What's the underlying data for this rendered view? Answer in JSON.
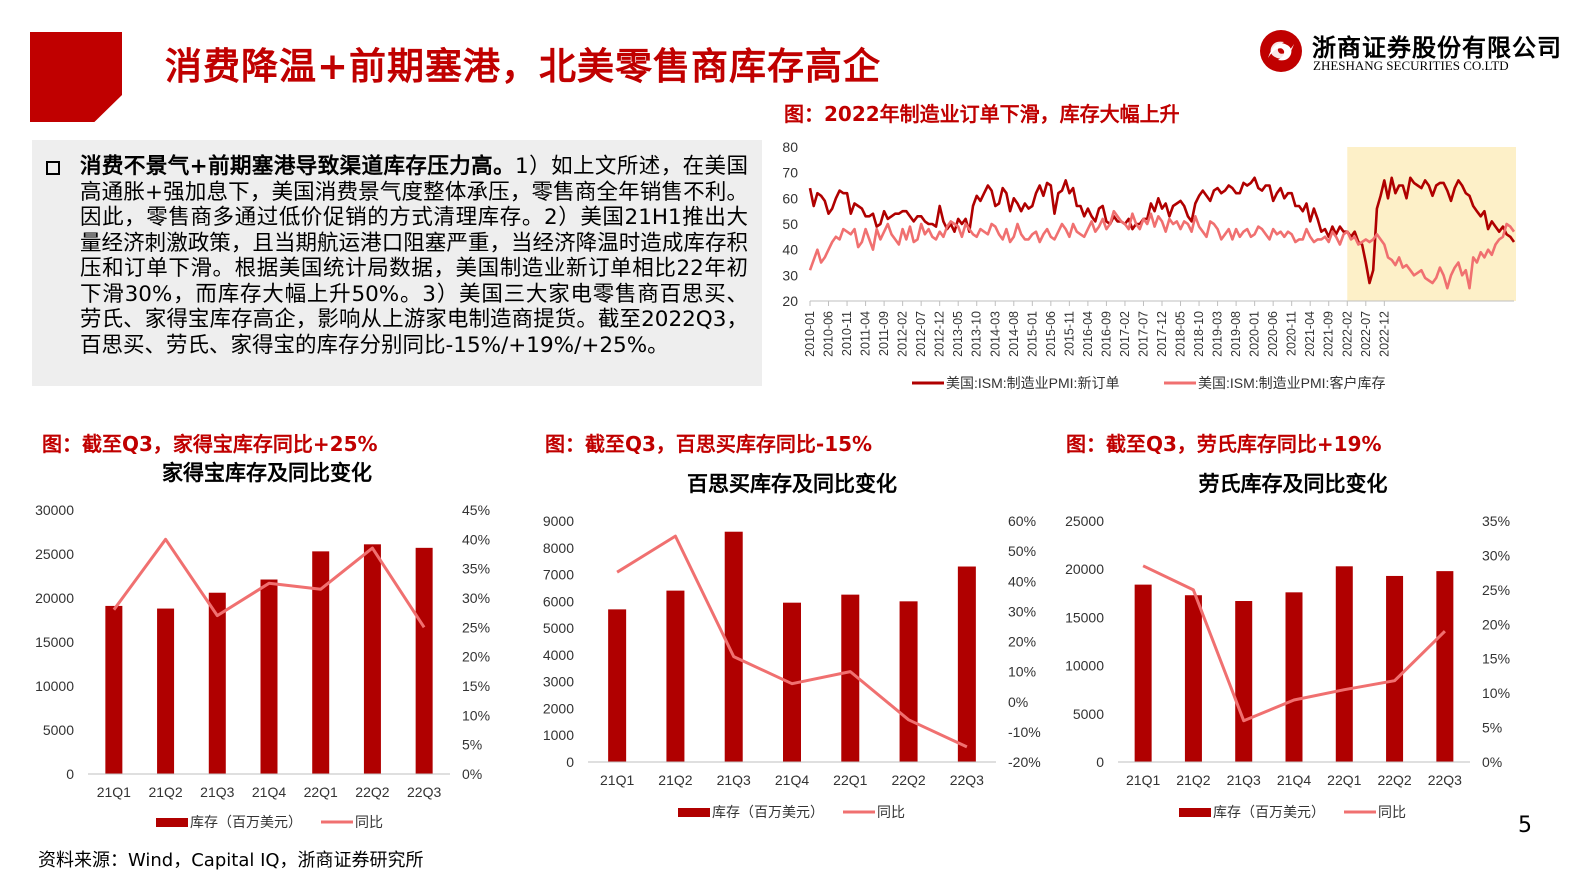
{
  "header": {
    "title": "消费降温+前期塞港，北美零售商库存高企",
    "logo_cn": "浙商证券股份有限公司",
    "logo_en": "ZHESHANG SECURITIES CO.LTD"
  },
  "body": {
    "lead": "消费不景气+前期塞港导致渠道库存压力高。",
    "text": "1）如上文所述，在美国高通胀+强加息下，美国消费景气度整体承压，零售商全年销售不利。因此，零售商多通过低价促销的方式清理库存。2）美国21H1推出大量经济刺激政策，且当期航运港口阻塞严重，当经济降温时造成库存积压和订单下滑。根据美国统计局数据，美国制造业新订单相比22年初下滑30%，而库存大幅上升50%。3）美国三大家电零售商百思买、劳氏、家得宝库存高企，影响从上游家电制造商提货。截至2022Q3，百思买、劳氏、家得宝的库存分别同比-15%/+19%/+25%。"
  },
  "figures": {
    "pmi_title": "图：2022年制造业订单下滑，库存大幅上升",
    "hd_title": "图：截至Q3，家得宝库存同比+25%",
    "bby_title": "图：截至Q3，百思买库存同比-15%",
    "low_title": "图：截至Q3，劳氏库存同比+19%"
  },
  "footer": {
    "source": "资料来源：Wind，Capital IQ，浙商证券研究所",
    "page": "5"
  },
  "colors": {
    "brand_red": "#c00000",
    "bar_red": "#b00000",
    "line_pink": "#f07070",
    "pmi_dark": "#b00000",
    "highlight": "#fdf0c8"
  },
  "chart_data": [
    {
      "type": "line",
      "x_ticks": [
        "2010-01",
        "2010-06",
        "2010-11",
        "2011-04",
        "2011-09",
        "2012-02",
        "2012-07",
        "2012-12",
        "2013-05",
        "2013-10",
        "2014-03",
        "2014-08",
        "2015-01",
        "2015-06",
        "2015-11",
        "2016-04",
        "2016-09",
        "2017-02",
        "2017-07",
        "2017-12",
        "2018-05",
        "2018-10",
        "2019-03",
        "2019-08",
        "2020-01",
        "2020-06",
        "2020-11",
        "2021-04",
        "2021-09",
        "2022-02",
        "2022-07",
        "2022-12"
      ],
      "ylim": [
        20,
        80
      ],
      "y_ticks": [
        20,
        30,
        40,
        50,
        60,
        70,
        80
      ],
      "highlight_from": "2022-02",
      "legend_placement": "bottom",
      "series": [
        {
          "name": "美国:ISM:制造业PMI:新订单",
          "values": [
            64,
            57,
            62,
            61,
            59,
            54,
            56,
            60,
            63,
            62,
            62,
            54,
            58,
            57,
            56,
            53,
            53,
            54,
            49,
            50,
            55,
            52,
            53,
            54,
            54,
            55,
            55,
            53,
            51,
            53,
            53,
            51,
            50,
            50,
            49,
            57,
            51,
            48,
            50,
            47,
            52,
            50,
            52,
            47,
            57,
            61,
            59,
            62,
            65,
            63,
            57,
            58,
            64,
            62,
            55,
            60,
            58,
            55,
            58,
            56,
            57,
            62,
            65,
            61,
            66,
            65,
            54,
            62,
            63,
            67,
            62,
            64,
            57,
            57,
            53,
            56,
            53,
            51,
            56,
            57,
            51,
            50,
            53,
            51,
            51,
            50,
            52,
            48,
            50,
            50,
            52,
            52,
            58,
            55,
            60,
            56,
            58,
            53,
            57,
            58,
            59,
            57,
            53,
            51,
            58,
            61,
            63,
            61,
            59,
            63,
            64,
            62,
            63,
            65,
            64,
            62,
            62,
            66,
            65,
            66,
            68,
            64,
            63,
            65,
            65,
            59,
            62,
            64,
            60,
            62,
            62,
            57,
            57,
            55,
            58,
            51,
            56,
            52,
            47,
            48,
            45,
            49,
            46,
            49,
            47,
            47,
            45,
            47,
            43,
            42,
            35,
            27,
            32,
            56,
            61,
            67,
            60,
            68,
            62,
            65,
            65,
            60,
            68,
            66,
            65,
            64,
            67,
            65,
            61,
            65,
            66,
            66,
            63,
            59,
            64,
            67,
            65,
            62,
            61,
            57,
            55,
            53,
            55,
            48,
            51,
            49,
            47,
            49,
            46,
            45,
            43
          ]
        },
        {
          "name": "美国:ISM:制造业PMI:客户库存",
          "values": [
            32,
            36,
            40,
            35,
            37,
            40,
            43,
            45,
            44,
            48,
            47,
            46,
            48,
            41,
            43,
            48,
            44,
            40,
            48,
            44,
            47,
            50,
            46,
            44,
            42,
            48,
            44,
            49,
            43,
            44,
            50,
            46,
            48,
            45,
            44,
            47,
            45,
            49,
            51,
            50,
            49,
            45,
            50,
            48,
            46,
            45,
            48,
            47,
            46,
            50,
            49,
            46,
            44,
            48,
            43,
            45,
            50,
            46,
            44,
            44,
            46,
            47,
            43,
            46,
            48,
            45,
            44,
            47,
            50,
            48,
            45,
            50,
            47,
            46,
            45,
            48,
            51,
            47,
            49,
            52,
            48,
            50,
            55,
            53,
            51,
            50,
            48,
            54,
            50,
            48,
            52,
            50,
            54,
            49,
            53,
            51,
            47,
            52,
            50,
            51,
            48,
            51,
            50,
            47,
            53,
            49,
            47,
            45,
            51,
            50,
            48,
            44,
            46,
            48,
            44,
            48,
            45,
            47,
            48,
            45,
            46,
            49,
            48,
            46,
            44,
            48,
            46,
            47,
            45,
            47,
            46,
            43,
            44,
            44,
            48,
            45,
            43,
            44,
            44,
            45,
            43,
            47,
            45,
            42,
            46,
            47,
            44,
            45,
            42,
            43,
            44,
            43,
            44,
            46,
            44,
            42,
            37,
            36,
            34,
            37,
            33,
            34,
            32,
            30,
            31,
            32,
            29,
            28,
            27,
            29,
            33,
            30,
            25,
            30,
            33,
            35,
            30,
            32,
            25,
            37,
            35,
            39,
            37,
            40,
            38,
            42,
            44,
            45,
            50,
            49,
            47
          ]
        }
      ]
    },
    {
      "type": "bar",
      "title": "家得宝库存及同比变化",
      "categories": [
        "21Q1",
        "21Q2",
        "21Q3",
        "21Q4",
        "22Q1",
        "22Q2",
        "22Q3"
      ],
      "ylim": [
        0,
        30000
      ],
      "y_ticks": [
        0,
        5000,
        10000,
        15000,
        20000,
        25000,
        30000
      ],
      "y2lim": [
        0,
        45
      ],
      "y2_ticks": [
        0,
        5,
        10,
        15,
        20,
        25,
        30,
        35,
        40,
        45
      ],
      "legend_placement": "bottom",
      "series": [
        {
          "name": "库存（百万美元）",
          "kind": "bar",
          "values": [
            19100,
            18800,
            20600,
            22100,
            25300,
            26100,
            25700
          ]
        },
        {
          "name": "同比",
          "kind": "line",
          "axis": "right",
          "unit": "%",
          "values": [
            28,
            40,
            27,
            32.5,
            31.5,
            38.5,
            25
          ]
        }
      ]
    },
    {
      "type": "bar",
      "title": "百思买库存及同比变化",
      "categories": [
        "21Q1",
        "21Q2",
        "21Q3",
        "21Q4",
        "22Q1",
        "22Q2",
        "22Q3"
      ],
      "ylim": [
        0,
        9000
      ],
      "y_ticks": [
        0,
        1000,
        2000,
        3000,
        4000,
        5000,
        6000,
        7000,
        8000,
        9000
      ],
      "y2lim": [
        -20,
        60
      ],
      "y2_ticks": [
        -20,
        -10,
        0,
        10,
        20,
        30,
        40,
        50,
        60
      ],
      "legend_placement": "bottom",
      "series": [
        {
          "name": "库存（百万美元）",
          "kind": "bar",
          "values": [
            5700,
            6400,
            8600,
            5950,
            6250,
            6000,
            7300
          ]
        },
        {
          "name": "同比",
          "kind": "line",
          "axis": "right",
          "unit": "%",
          "values": [
            43,
            55,
            15,
            6,
            10,
            -6,
            -15
          ]
        }
      ]
    },
    {
      "type": "bar",
      "title": "劳氏库存及同比变化",
      "categories": [
        "21Q1",
        "21Q2",
        "21Q3",
        "21Q4",
        "22Q1",
        "22Q2",
        "22Q3"
      ],
      "ylim": [
        0,
        25000
      ],
      "y_ticks": [
        0,
        5000,
        10000,
        15000,
        20000,
        25000
      ],
      "y2lim": [
        0,
        35
      ],
      "y2_ticks": [
        0,
        5,
        10,
        15,
        20,
        25,
        30,
        35
      ],
      "legend_placement": "bottom",
      "series": [
        {
          "name": "库存（百万美元）",
          "kind": "bar",
          "values": [
            18400,
            17300,
            16700,
            17600,
            20300,
            19300,
            19800
          ]
        },
        {
          "name": "同比",
          "kind": "line",
          "axis": "right",
          "unit": "%",
          "values": [
            28.5,
            25,
            6,
            9,
            10.5,
            11.8,
            19
          ]
        }
      ]
    }
  ]
}
